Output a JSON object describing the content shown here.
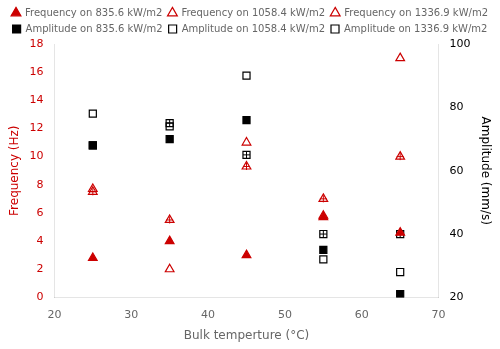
{
  "chart_data": {
    "type": "scatter",
    "xlabel": "Bulk temperture (°C)",
    "ylabel": "Frequency (Hz)",
    "y2label": "Amplitude (mm/s)",
    "x": [
      25,
      35,
      45,
      55,
      65
    ],
    "series": [
      {
        "name": "Frequency on 835.6 kW/m2",
        "color": "#cc0000",
        "marker": "triangle",
        "values": [
          2.8,
          4.0,
          3.0,
          5.7,
          4.6
        ]
      },
      {
        "name": "Frequency on 1058.4 kW/m2",
        "color": "#cc0000",
        "marker": "triangle-open-plus",
        "values": [
          7.5,
          5.5,
          9.3,
          7.0,
          10.0
        ]
      },
      {
        "name": "Frequency on 1336.9 kW/m2",
        "color": "#cc0000",
        "marker": "triangle-open",
        "values": [
          7.7,
          2.0,
          11.0,
          5.8,
          17.0
        ]
      },
      {
        "name": "Amplitude on 835.6 kW/m2",
        "color": "#000000",
        "marker": "square",
        "axis": "y2",
        "values": [
          68,
          70,
          76,
          35,
          21
        ]
      },
      {
        "name": "Amplitude on 1058.4 kW/m2",
        "color": "#000000",
        "marker": "square-open-plus",
        "axis": "y2",
        "values": [
          68,
          75,
          65,
          40,
          40
        ]
      },
      {
        "name": "Amplitude on 1336.9 kW/m2",
        "color": "#000000",
        "marker": "square-open",
        "axis": "y2",
        "values": [
          78,
          74,
          90,
          32,
          28
        ]
      }
    ],
    "xlim": [
      20,
      70
    ],
    "xticks": [
      20,
      30,
      40,
      50,
      60,
      70
    ],
    "ylim": [
      0,
      18
    ],
    "yticks": [
      0,
      2,
      4,
      6,
      8,
      10,
      12,
      14,
      16,
      18
    ],
    "y2lim": [
      20,
      100
    ],
    "y2ticks": [
      20,
      40,
      60,
      80,
      100
    ],
    "grid": false,
    "legend": "top"
  }
}
